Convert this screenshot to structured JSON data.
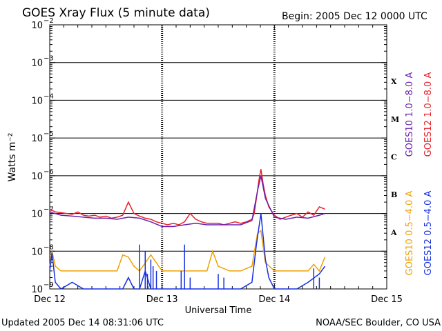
{
  "header": {
    "title": "GOES Xray Flux (5 minute data)",
    "begin": "Begin:  2005 Dec 12 0000 UTC"
  },
  "footer": {
    "updated": "Updated 2005 Dec 14 08:31:06 UTC",
    "credit": "NOAA/SEC Boulder, CO USA"
  },
  "colors": {
    "goes10_long": "#6a1fb0",
    "goes12_long": "#e8202a",
    "goes10_short": "#f0a000",
    "goes12_short": "#1530e0",
    "grid": "#000000"
  },
  "chart_data": {
    "type": "line",
    "title": "GOES Xray Flux (5 minute data)",
    "xlabel": "Universal Time",
    "ylabel": "Watts m⁻²",
    "yscale": "log",
    "ylim": [
      1e-09,
      0.01
    ],
    "xlim": [
      0,
      3
    ],
    "x_tick_labels": [
      {
        "x": 0,
        "label": "Dec 12"
      },
      {
        "x": 1,
        "label": "Dec 13"
      },
      {
        "x": 2,
        "label": "Dec 14"
      },
      {
        "x": 3,
        "label": "Dec 15"
      }
    ],
    "y_tick_labels": [
      {
        "mant": "10",
        "exp": "−2",
        "v": -2
      },
      {
        "mant": "10",
        "exp": "−3",
        "v": -3
      },
      {
        "mant": "10",
        "exp": "−4",
        "v": -4
      },
      {
        "mant": "10",
        "exp": "−5",
        "v": -5
      },
      {
        "mant": "10",
        "exp": "−6",
        "v": -6
      },
      {
        "mant": "10",
        "exp": "−7",
        "v": -7
      },
      {
        "mant": "10",
        "exp": "−8",
        "v": -8
      },
      {
        "mant": "10",
        "exp": "−9",
        "v": -9
      }
    ],
    "flare_classes": [
      {
        "label": "X",
        "v": -3.5
      },
      {
        "label": "M",
        "v": -4.5
      },
      {
        "label": "C",
        "v": -5.5
      },
      {
        "label": "B",
        "v": -6.5
      },
      {
        "label": "A",
        "v": -7.5
      }
    ],
    "legend_long": [
      "GOES10 1.0−8.0 A",
      "GOES12 1.0−8.0 A"
    ],
    "legend_short": [
      "GOES10 0.5−4.0 A",
      "GOES12 0.5−4.0 A"
    ],
    "grid": true,
    "series": [
      {
        "name": "GOES12 1.0−8.0 A",
        "x": [
          0,
          0.05,
          0.1,
          0.15,
          0.2,
          0.25,
          0.3,
          0.35,
          0.4,
          0.45,
          0.5,
          0.55,
          0.6,
          0.65,
          0.7,
          0.75,
          0.8,
          0.85,
          0.9,
          0.95,
          1.0,
          1.05,
          1.1,
          1.15,
          1.2,
          1.25,
          1.3,
          1.35,
          1.4,
          1.45,
          1.5,
          1.55,
          1.6,
          1.65,
          1.7,
          1.75,
          1.8,
          1.82,
          1.84,
          1.86,
          1.88,
          1.9,
          1.92,
          1.95,
          2.0,
          2.05,
          2.1,
          2.15,
          2.2,
          2.25,
          2.3,
          2.35,
          2.4,
          2.45
        ],
        "y": [
          1.3e-07,
          1.1e-07,
          1.05e-07,
          1e-07,
          9.5e-08,
          1.1e-07,
          9e-08,
          8.5e-08,
          9e-08,
          8e-08,
          8.5e-08,
          7.5e-08,
          8e-08,
          9e-08,
          2e-07,
          1e-07,
          8.5e-08,
          7.5e-08,
          7e-08,
          6e-08,
          5.5e-08,
          5e-08,
          5.5e-08,
          5e-08,
          6e-08,
          1e-07,
          7e-08,
          6e-08,
          5.5e-08,
          5.5e-08,
          5.5e-08,
          5e-08,
          5.5e-08,
          6e-08,
          5.5e-08,
          6e-08,
          7e-08,
          1e-07,
          2.5e-07,
          7e-07,
          1.5e-06,
          6e-07,
          3e-07,
          1.5e-07,
          9e-08,
          7e-08,
          8e-08,
          9e-08,
          1e-07,
          8e-08,
          1.1e-07,
          9e-08,
          1.5e-07,
          1.3e-07
        ]
      },
      {
        "name": "GOES10 1.0−8.0 A",
        "x": [
          0,
          0.1,
          0.2,
          0.3,
          0.4,
          0.5,
          0.6,
          0.7,
          0.8,
          0.9,
          1.0,
          1.1,
          1.2,
          1.3,
          1.4,
          1.5,
          1.6,
          1.7,
          1.8,
          1.85,
          1.88,
          1.92,
          2.0,
          2.1,
          2.2,
          2.3,
          2.4,
          2.45
        ],
        "y": [
          1.1e-07,
          9e-08,
          8.5e-08,
          8e-08,
          7.5e-08,
          7.5e-08,
          7e-08,
          8e-08,
          7.5e-08,
          6e-08,
          4.5e-08,
          4.5e-08,
          5e-08,
          5.5e-08,
          5e-08,
          5e-08,
          5e-08,
          5e-08,
          6.5e-08,
          4e-07,
          1e-06,
          2.5e-07,
          8e-08,
          7e-08,
          8e-08,
          7.5e-08,
          9e-08,
          1e-07
        ]
      },
      {
        "name": "GOES10 0.5−4.0 A",
        "x": [
          0,
          0.02,
          0.05,
          0.1,
          0.3,
          0.5,
          0.6,
          0.65,
          0.7,
          0.75,
          0.8,
          0.9,
          1.0,
          1.1,
          1.2,
          1.3,
          1.4,
          1.45,
          1.5,
          1.6,
          1.7,
          1.8,
          1.85,
          1.88,
          1.92,
          2.0,
          2.1,
          2.2,
          2.3,
          2.35,
          2.4,
          2.45
        ],
        "y": [
          4e-09,
          1e-08,
          4e-09,
          3e-09,
          3e-09,
          3e-09,
          3e-09,
          8e-09,
          7e-09,
          4e-09,
          3e-09,
          8e-09,
          3e-09,
          3e-09,
          3e-09,
          3e-09,
          3e-09,
          1e-08,
          4e-09,
          3e-09,
          3e-09,
          4e-09,
          3e-08,
          3.5e-08,
          5e-09,
          3e-09,
          3e-09,
          3e-09,
          3e-09,
          4.5e-09,
          3e-09,
          7e-09
        ]
      },
      {
        "name": "GOES12 0.5−4.0 A",
        "x": [
          0,
          0.02,
          0.05,
          0.1,
          0.2,
          0.3,
          0.5,
          0.65,
          0.7,
          0.75,
          0.8,
          0.85,
          0.9,
          1.0,
          1.1,
          1.2,
          1.3,
          1.4,
          1.5,
          1.6,
          1.7,
          1.8,
          1.84,
          1.88,
          1.92,
          1.95,
          2.0,
          2.1,
          2.2,
          2.3,
          2.4,
          2.45
        ],
        "y": [
          3e-09,
          9e-09,
          1.5e-09,
          1e-09,
          1.5e-09,
          1e-09,
          1e-09,
          1e-09,
          2e-09,
          1e-09,
          1e-09,
          3e-09,
          1e-09,
          1e-09,
          1e-09,
          1e-09,
          1e-09,
          1e-09,
          1e-09,
          1e-09,
          1e-09,
          1.5e-09,
          1.5e-08,
          1e-07,
          6e-09,
          2e-09,
          1e-09,
          1e-09,
          1e-09,
          1.5e-09,
          2.5e-09,
          4e-09
        ]
      }
    ],
    "spikes": [
      {
        "series": "GOES12 0.5−4.0 A",
        "x": [
          0.8,
          0.85,
          0.87,
          0.9,
          0.92,
          0.95,
          1.17,
          1.2,
          1.25,
          1.5,
          1.55,
          2.35,
          2.4
        ],
        "y": [
          1.5e-08,
          1e-08,
          2.5e-09,
          6e-09,
          4e-09,
          3e-09,
          3e-09,
          1.5e-08,
          2e-09,
          2.5e-09,
          2e-09,
          3.5e-09,
          2e-09
        ]
      }
    ]
  }
}
